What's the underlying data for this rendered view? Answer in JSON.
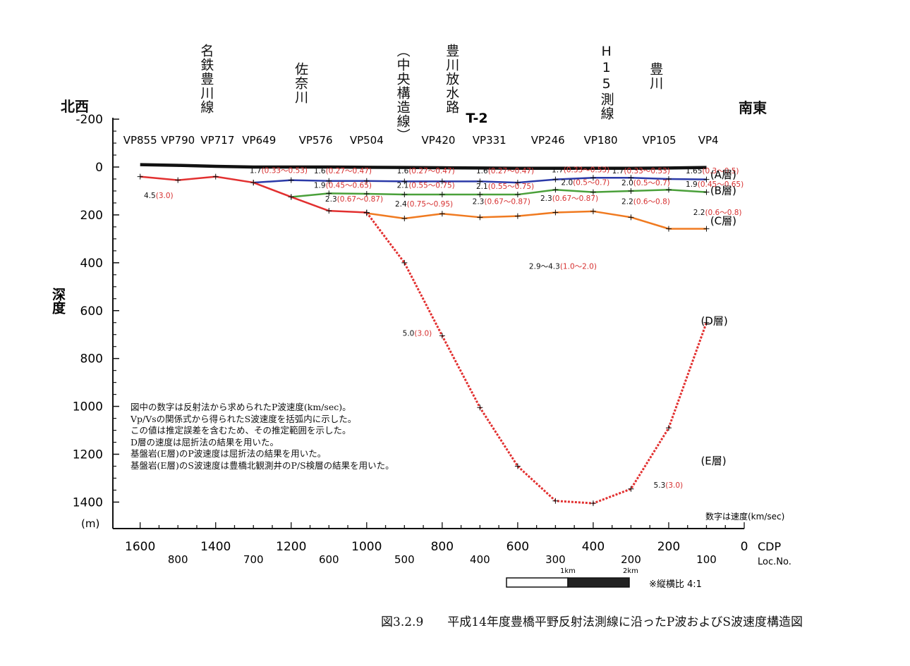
{
  "figure": {
    "number": "図3.2.9",
    "caption": "平成14年度豊橋平野反射法測線に沿ったP波およびS波速度構造図",
    "left_direction": "北西",
    "right_direction": "南東",
    "line_name": "T-2",
    "units_note": "数字は速度(km/sec)",
    "aspect_note": "※縦横比 4:1",
    "scale_bar_labels": [
      "1km",
      "2km"
    ],
    "notes": [
      "図中の数字は反射法から求められたP波速度(km/sec)。",
      "Vp/Vsの関係式から得られたS波速度を括弧内に示した。",
      "この値は推定誤差を含むため、その推定範囲を示した。",
      "D層の速度は屈折法の結果を用いた。",
      "基盤岩(E層)のP波速度は屈折法の結果を用いた。",
      "基盤岩(E層)のS波速度は豊橋北観測井のP/S検層の結果を用いた。"
    ]
  },
  "landmarks": [
    {
      "text": "名鉄豊川線",
      "cdp": 1425
    },
    {
      "text": "佐奈川",
      "cdp": 1175
    },
    {
      "text": "（中央構造線）",
      "cdp": 905
    },
    {
      "text": "豊川放水路",
      "cdp": 775
    },
    {
      "text": "H15測線",
      "cdp": 365
    },
    {
      "text": "豊川",
      "cdp": 235
    }
  ],
  "chart_data": {
    "type": "line",
    "title": "T-2",
    "xlabel": "CDP",
    "xlabel2": "Loc.No.",
    "ylabel": "深度",
    "yunit": "(m)",
    "xlim": [
      1650,
      0
    ],
    "ylim": [
      -200,
      1450
    ],
    "x_ticks": [
      1600,
      1400,
      1200,
      1000,
      800,
      600,
      400,
      200,
      0
    ],
    "y_ticks": [
      -200,
      0,
      200,
      400,
      600,
      800,
      1000,
      1200,
      1400
    ],
    "loc_ticks": [
      {
        "cdp": 1500,
        "label": "800"
      },
      {
        "cdp": 1300,
        "label": "700"
      },
      {
        "cdp": 1100,
        "label": "600"
      },
      {
        "cdp": 900,
        "label": "500"
      },
      {
        "cdp": 700,
        "label": "400"
      },
      {
        "cdp": 500,
        "label": "300"
      },
      {
        "cdp": 300,
        "label": "200"
      },
      {
        "cdp": 100,
        "label": "100"
      }
    ],
    "vp_labels": [
      {
        "text": "VP855",
        "cdp": 1600
      },
      {
        "text": "VP790",
        "cdp": 1500
      },
      {
        "text": "VP717",
        "cdp": 1395
      },
      {
        "text": "VP649",
        "cdp": 1285
      },
      {
        "text": "VP576",
        "cdp": 1135
      },
      {
        "text": "VP504",
        "cdp": 1000
      },
      {
        "text": "VP420",
        "cdp": 810
      },
      {
        "text": "VP331",
        "cdp": 675
      },
      {
        "text": "VP246",
        "cdp": 520
      },
      {
        "text": "VP180",
        "cdp": 380
      },
      {
        "text": "VP105",
        "cdp": 225
      },
      {
        "text": "VP4",
        "cdp": 95
      }
    ],
    "series": [
      {
        "name": "surface",
        "color": "#111111",
        "style": "solid",
        "x": [
          1600,
          1500,
          1400,
          1300,
          1200,
          1100,
          1000,
          900,
          800,
          700,
          600,
          500,
          400,
          300,
          200,
          100
        ],
        "y": [
          -10,
          -7,
          -3,
          0,
          0,
          0,
          1,
          2,
          3,
          4,
          5,
          5,
          5,
          5,
          4,
          2
        ]
      },
      {
        "name": "A-base",
        "color": "#2b3aa8",
        "style": "solid",
        "x": [
          1300,
          1200,
          1100,
          1000,
          900,
          800,
          700,
          600,
          500,
          400,
          300,
          200,
          100
        ],
        "y": [
          65,
          55,
          58,
          58,
          60,
          60,
          60,
          65,
          52,
          45,
          45,
          50,
          52
        ]
      },
      {
        "name": "B-base",
        "color": "#4aa03a",
        "style": "solid",
        "x": [
          1200,
          1100,
          1000,
          900,
          800,
          700,
          600,
          500,
          400,
          300,
          200,
          100
        ],
        "y": [
          125,
          110,
          112,
          115,
          115,
          115,
          115,
          95,
          105,
          100,
          95,
          105
        ]
      },
      {
        "name": "C-base",
        "color": "#f07a20",
        "style": "solid",
        "x": [
          1000,
          900,
          800,
          700,
          600,
          500,
          400,
          300,
          200,
          100
        ],
        "y": [
          193,
          215,
          195,
          210,
          205,
          190,
          185,
          210,
          258,
          258
        ]
      },
      {
        "name": "D-base-shallow",
        "color": "#e23030",
        "style": "solid",
        "x": [
          1600,
          1500,
          1400,
          1300,
          1200,
          1100,
          1000
        ],
        "y": [
          40,
          55,
          40,
          65,
          125,
          183,
          190
        ]
      },
      {
        "name": "D-base-deep",
        "color": "#e23030",
        "style": "dotted",
        "x": [
          1000,
          900,
          800,
          700,
          600,
          500,
          400,
          300,
          200,
          100
        ],
        "y": [
          190,
          400,
          705,
          1005,
          1250,
          1395,
          1405,
          1345,
          1090,
          650
        ]
      }
    ],
    "layer_labels": [
      {
        "text": "(A層)",
        "x": 90,
        "y": 30
      },
      {
        "text": "(B層)",
        "x": 90,
        "y": 95
      },
      {
        "text": "(C層)",
        "x": 90,
        "y": 222
      },
      {
        "text": "(D層)",
        "x": 115,
        "y": 640
      },
      {
        "text": "(E層)",
        "x": 115,
        "y": 1225
      }
    ],
    "velocity_labels": [
      {
        "p": "4.5",
        "s": "(3.0)",
        "x": 1590,
        "y": 130
      },
      {
        "p": "1.7",
        "s": "(0.33～0.53)",
        "x": 1310,
        "y": 25
      },
      {
        "p": "1.6",
        "s": "(0.27～0.47)",
        "x": 1140,
        "y": 27
      },
      {
        "p": "1.6",
        "s": "(0.27～0.47)",
        "x": 920,
        "y": 27
      },
      {
        "p": "1.6",
        "s": "(0.27～0.47)",
        "x": 710,
        "y": 27
      },
      {
        "p": "1.7",
        "s": "(0.33～0.53)",
        "x": 510,
        "y": 22
      },
      {
        "p": "1.7",
        "s": "(0.33～0.53)",
        "x": 350,
        "y": 27
      },
      {
        "p": "1.65",
        "s": "(0.3～0.5)",
        "x": 155,
        "y": 27
      },
      {
        "p": "1.9",
        "s": "(0.45～0.65)",
        "x": 1140,
        "y": 87
      },
      {
        "p": "2.1",
        "s": "(0.55～0.75)",
        "x": 920,
        "y": 87
      },
      {
        "p": "2.1",
        "s": "(0.55～0.75)",
        "x": 710,
        "y": 92
      },
      {
        "p": "2.0",
        "s": "(0.5～0.7)",
        "x": 485,
        "y": 75
      },
      {
        "p": "2.0",
        "s": "(0.5～0.7)",
        "x": 325,
        "y": 77
      },
      {
        "p": "1.9",
        "s": "(0.45～0.65)",
        "x": 155,
        "y": 82
      },
      {
        "p": "2.3",
        "s": "(0.67～0.87)",
        "x": 1110,
        "y": 145
      },
      {
        "p": "2.4",
        "s": "(0.75～0.95)",
        "x": 925,
        "y": 165
      },
      {
        "p": "2.3",
        "s": "(0.67～0.87)",
        "x": 720,
        "y": 155
      },
      {
        "p": "2.3",
        "s": "(0.67～0.87)",
        "x": 540,
        "y": 142
      },
      {
        "p": "2.2",
        "s": "(0.6～0.8)",
        "x": 325,
        "y": 155
      },
      {
        "p": "2.2",
        "s": "(0.6～0.8)",
        "x": 135,
        "y": 200
      },
      {
        "p": "2.9～4.3",
        "s": "(1.0～2.0)",
        "x": 570,
        "y": 425
      },
      {
        "p": "5.0",
        "s": "(3.0)",
        "x": 905,
        "y": 705
      },
      {
        "p": "5.3",
        "s": "(3.0)",
        "x": 240,
        "y": 1340
      }
    ]
  }
}
